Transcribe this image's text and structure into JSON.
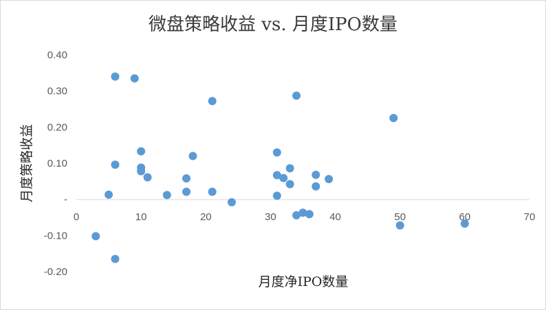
{
  "chart_data": {
    "type": "scatter",
    "title": "微盘策略收益 vs. 月度IPO数量",
    "xlabel": "月度净IPO数量",
    "ylabel": "月度策略收益",
    "xlim": [
      0,
      70
    ],
    "ylim": [
      -0.2,
      0.4
    ],
    "x_ticks": [
      0,
      10,
      20,
      30,
      40,
      50,
      60,
      70
    ],
    "x_tick_labels": [
      "0",
      "10",
      "20",
      "30",
      "40",
      "50",
      "60",
      "70"
    ],
    "y_ticks": [
      0.4,
      0.3,
      0.2,
      0.1,
      0,
      -0.1,
      -0.2
    ],
    "y_tick_labels": [
      "0.40",
      "0.30",
      "0.20",
      "0.10",
      "-",
      "-0.10",
      "-0.20"
    ],
    "grid": false,
    "legend": "none",
    "marker_color": "#5b9bd5",
    "points": [
      {
        "x": 3,
        "y": -0.102
      },
      {
        "x": 5,
        "y": 0.013
      },
      {
        "x": 6,
        "y": 0.34
      },
      {
        "x": 6,
        "y": 0.096
      },
      {
        "x": 6,
        "y": -0.165
      },
      {
        "x": 9,
        "y": 0.335
      },
      {
        "x": 10,
        "y": 0.133
      },
      {
        "x": 10,
        "y": 0.088
      },
      {
        "x": 10,
        "y": 0.078
      },
      {
        "x": 11,
        "y": 0.061
      },
      {
        "x": 14,
        "y": 0.012
      },
      {
        "x": 17,
        "y": 0.058
      },
      {
        "x": 17,
        "y": 0.021
      },
      {
        "x": 18,
        "y": 0.12
      },
      {
        "x": 21,
        "y": 0.272
      },
      {
        "x": 21,
        "y": 0.021
      },
      {
        "x": 24,
        "y": -0.008
      },
      {
        "x": 31,
        "y": 0.13
      },
      {
        "x": 31,
        "y": 0.067
      },
      {
        "x": 31,
        "y": 0.01
      },
      {
        "x": 32,
        "y": 0.059
      },
      {
        "x": 33,
        "y": 0.086
      },
      {
        "x": 33,
        "y": 0.042
      },
      {
        "x": 34,
        "y": 0.287
      },
      {
        "x": 34,
        "y": -0.044
      },
      {
        "x": 35,
        "y": -0.037
      },
      {
        "x": 36,
        "y": -0.041
      },
      {
        "x": 37,
        "y": 0.068
      },
      {
        "x": 37,
        "y": 0.036
      },
      {
        "x": 39,
        "y": 0.056
      },
      {
        "x": 49,
        "y": 0.225
      },
      {
        "x": 50,
        "y": -0.072
      },
      {
        "x": 60,
        "y": -0.067
      }
    ]
  }
}
